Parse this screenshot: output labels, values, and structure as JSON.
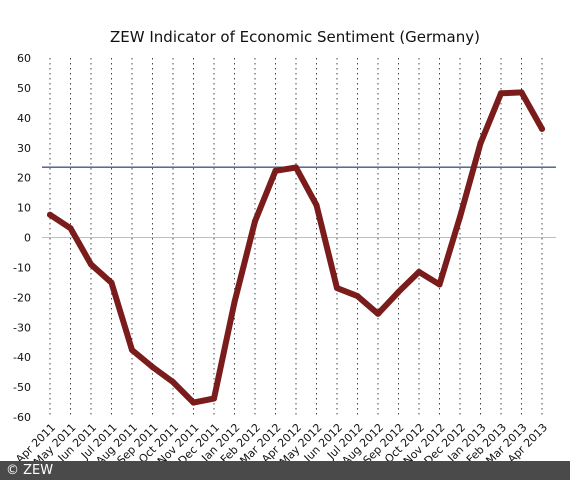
{
  "chart_data": {
    "type": "line",
    "title": "ZEW Indicator of Economic Sentiment (Germany)",
    "xlabel": "",
    "ylabel": "",
    "ylim": [
      -60,
      60
    ],
    "yticks": [
      60,
      50,
      40,
      30,
      20,
      10,
      0,
      -10,
      -20,
      -30,
      -40,
      -50,
      -60
    ],
    "grid": "vertical dotted",
    "categories": [
      "Apr 2011",
      "May 2011",
      "Jun 2011",
      "Jul 2011",
      "Aug 2011",
      "Sep 2011",
      "Oct 2011",
      "Nov 2011",
      "Dec 2011",
      "Jan 2012",
      "Feb 2012",
      "Mar 2012",
      "Apr 2012",
      "May 2012",
      "Jun 2012",
      "Jul 2012",
      "Aug 2012",
      "Sep 2012",
      "Oct 2012",
      "Nov 2012",
      "Dec 2012",
      "Jan 2013",
      "Feb 2013",
      "Mar 2013",
      "Apr 2013"
    ],
    "series": [
      {
        "color": "#7b1c1c",
        "values": [
          7.6,
          3.1,
          -9.0,
          -15.1,
          -37.6,
          -43.3,
          -48.3,
          -55.2,
          -53.8,
          -21.6,
          5.4,
          22.3,
          23.4,
          10.8,
          -16.9,
          -19.6,
          -25.5,
          -18.2,
          -11.5,
          -15.7,
          6.9,
          31.5,
          48.2,
          48.5,
          36.3
        ]
      }
    ],
    "reference_line": {
      "value": 23.5,
      "color": "#3c5a8a"
    }
  },
  "copyright": "© ZEW"
}
